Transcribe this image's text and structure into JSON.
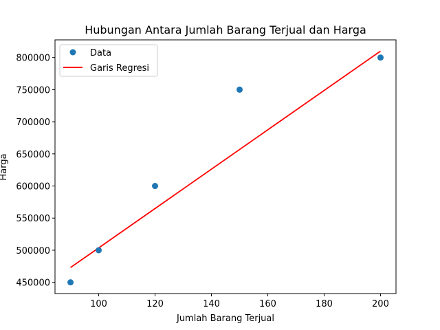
{
  "chart_data": {
    "type": "scatter",
    "title": "Hubungan Antara Jumlah Barang Terjual dan Harga",
    "xlabel": "Jumlah Barang Terjual",
    "ylabel": "Harga",
    "xlim": [
      84.5,
      205.5
    ],
    "ylim": [
      432500,
      827500
    ],
    "x_ticks": [
      100,
      120,
      140,
      160,
      180,
      200
    ],
    "y_ticks": [
      450000,
      500000,
      550000,
      600000,
      650000,
      700000,
      750000,
      800000
    ],
    "grid": false,
    "legend_position": "upper-left",
    "series": [
      {
        "name": "Data",
        "type": "scatter",
        "color": "#1f77b4",
        "points": [
          {
            "x": 90,
            "y": 450000
          },
          {
            "x": 100,
            "y": 500000
          },
          {
            "x": 120,
            "y": 600000
          },
          {
            "x": 150,
            "y": 750000
          },
          {
            "x": 200,
            "y": 800000
          }
        ]
      },
      {
        "name": "Garis Regresi",
        "type": "line",
        "color": "#ff0000",
        "points": [
          {
            "x": 90,
            "y": 473000
          },
          {
            "x": 200,
            "y": 810000
          }
        ]
      }
    ]
  }
}
